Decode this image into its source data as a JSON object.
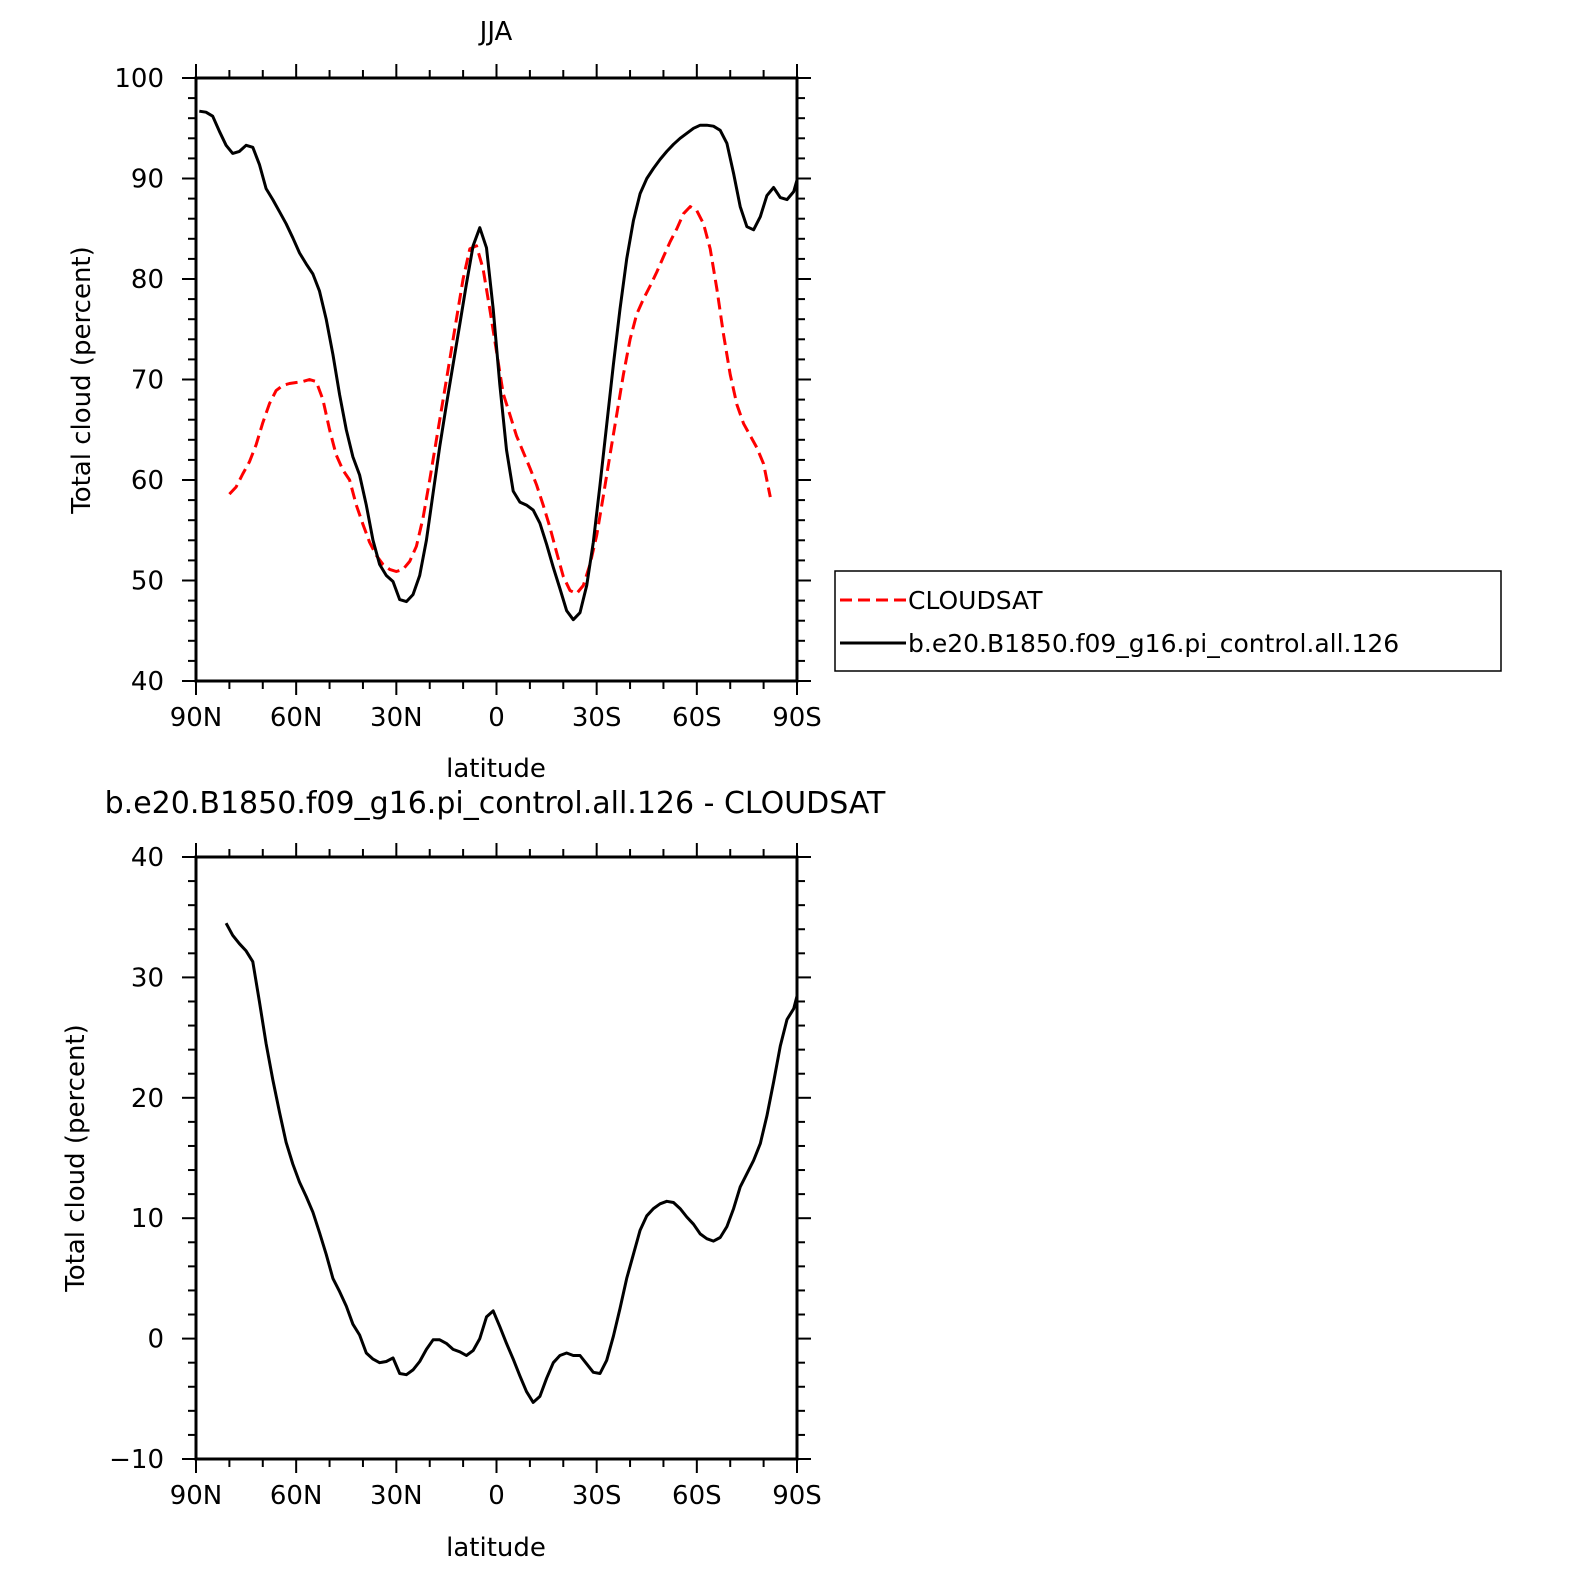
{
  "chart_data": [
    {
      "type": "line",
      "title": "JJA",
      "xlabel": "latitude",
      "ylabel": "Total cloud (percent)",
      "xlim": [
        90,
        -90
      ],
      "ylim": [
        40,
        100
      ],
      "x_ticks": [
        90,
        60,
        30,
        0,
        -30,
        -60,
        -90
      ],
      "x_tick_labels": [
        "90N",
        "60N",
        "30N",
        "0",
        "30S",
        "60S",
        "90S"
      ],
      "y_ticks": [
        40,
        50,
        60,
        70,
        80,
        90,
        100
      ],
      "y_tick_labels": [
        "40",
        "50",
        "60",
        "70",
        "80",
        "90",
        "100"
      ],
      "legend": {
        "placement": "right",
        "entries": [
          "CLOUDSAT",
          "b.e20.B1850.f09_g16.pi_control.all.126"
        ]
      },
      "series": [
        {
          "name": "CLOUDSAT",
          "color": "#ff0000",
          "dash": "dashed",
          "points": [
            [
              80,
              58.6
            ],
            [
              78,
              59.3
            ],
            [
              76,
              60.6
            ],
            [
              74,
              61.8
            ],
            [
              72,
              63.5
            ],
            [
              70,
              65.7
            ],
            [
              68,
              67.6
            ],
            [
              66,
              68.9
            ],
            [
              64,
              69.4
            ],
            [
              62,
              69.6
            ],
            [
              60,
              69.7
            ],
            [
              58,
              69.8
            ],
            [
              56,
              70.0
            ],
            [
              54,
              69.8
            ],
            [
              52,
              68.0
            ],
            [
              50,
              65.0
            ],
            [
              48,
              62.5
            ],
            [
              46,
              61.0
            ],
            [
              44,
              60.0
            ],
            [
              42,
              57.5
            ],
            [
              40,
              55.6
            ],
            [
              38,
              53.8
            ],
            [
              36,
              52.5
            ],
            [
              34,
              51.6
            ],
            [
              32,
              51.1
            ],
            [
              30,
              50.9
            ],
            [
              28,
              51.1
            ],
            [
              26,
              51.9
            ],
            [
              24,
              53.4
            ],
            [
              22,
              56.2
            ],
            [
              20,
              60.0
            ],
            [
              18,
              64.0
            ],
            [
              16,
              68.0
            ],
            [
              14,
              72.0
            ],
            [
              12,
              76.0
            ],
            [
              10,
              80.0
            ],
            [
              8,
              83.0
            ],
            [
              6,
              83.3
            ],
            [
              4,
              81.0
            ],
            [
              2,
              77.0
            ],
            [
              0,
              72.8
            ],
            [
              -2,
              68.6
            ],
            [
              -4,
              66.5
            ],
            [
              -6,
              64.4
            ],
            [
              -8,
              62.8
            ],
            [
              -10,
              61.2
            ],
            [
              -12,
              59.5
            ],
            [
              -14,
              57.5
            ],
            [
              -16,
              55.3
            ],
            [
              -18,
              52.8
            ],
            [
              -20,
              50.4
            ],
            [
              -22,
              49.0
            ],
            [
              -24,
              48.7
            ],
            [
              -26,
              49.5
            ],
            [
              -28,
              51.6
            ],
            [
              -30,
              54.5
            ],
            [
              -32,
              58.4
            ],
            [
              -34,
              62.5
            ],
            [
              -36,
              66.5
            ],
            [
              -38,
              70.5
            ],
            [
              -40,
              74.0
            ],
            [
              -42,
              76.5
            ],
            [
              -44,
              78.0
            ],
            [
              -46,
              79.3
            ],
            [
              -48,
              80.7
            ],
            [
              -50,
              82.2
            ],
            [
              -52,
              83.7
            ],
            [
              -54,
              85.0
            ],
            [
              -56,
              86.5
            ],
            [
              -58,
              87.2
            ],
            [
              -60,
              86.8
            ],
            [
              -62,
              85.5
            ],
            [
              -64,
              83.0
            ],
            [
              -66,
              79.0
            ],
            [
              -68,
              74.5
            ],
            [
              -70,
              70.5
            ],
            [
              -72,
              67.5
            ],
            [
              -74,
              65.6
            ],
            [
              -76,
              64.4
            ],
            [
              -78,
              63.2
            ],
            [
              -80,
              61.6
            ],
            [
              -82,
              58.3
            ]
          ]
        },
        {
          "name": "b.e20.B1850.f09_g16.pi_control.all.126",
          "color": "#000000",
          "dash": "solid",
          "points": [
            [
              89,
              96.7
            ],
            [
              87,
              96.6
            ],
            [
              85,
              96.2
            ],
            [
              83,
              94.7
            ],
            [
              81,
              93.3
            ],
            [
              79,
              92.5
            ],
            [
              77,
              92.7
            ],
            [
              75,
              93.3
            ],
            [
              73,
              93.1
            ],
            [
              71,
              91.4
            ],
            [
              69,
              89.0
            ],
            [
              67,
              87.9
            ],
            [
              65,
              86.7
            ],
            [
              63,
              85.5
            ],
            [
              61,
              84.1
            ],
            [
              59,
              82.6
            ],
            [
              57,
              81.5
            ],
            [
              55,
              80.5
            ],
            [
              53,
              78.8
            ],
            [
              51,
              76.0
            ],
            [
              49,
              72.5
            ],
            [
              47,
              68.5
            ],
            [
              45,
              65.0
            ],
            [
              43,
              62.3
            ],
            [
              41,
              60.5
            ],
            [
              39,
              57.5
            ],
            [
              37,
              54.0
            ],
            [
              35,
              51.6
            ],
            [
              33,
              50.5
            ],
            [
              31,
              49.9
            ],
            [
              29,
              48.1
            ],
            [
              27,
              47.9
            ],
            [
              25,
              48.6
            ],
            [
              23,
              50.5
            ],
            [
              21,
              54.0
            ],
            [
              19,
              58.7
            ],
            [
              17,
              63.3
            ],
            [
              15,
              67.5
            ],
            [
              13,
              71.5
            ],
            [
              11,
              75.5
            ],
            [
              9,
              79.5
            ],
            [
              7,
              83.3
            ],
            [
              5,
              85.1
            ],
            [
              3,
              83.1
            ],
            [
              1,
              77.0
            ],
            [
              -1,
              69.5
            ],
            [
              -3,
              63.0
            ],
            [
              -5,
              58.9
            ],
            [
              -7,
              57.8
            ],
            [
              -9,
              57.5
            ],
            [
              -11,
              57.0
            ],
            [
              -13,
              55.7
            ],
            [
              -15,
              53.6
            ],
            [
              -17,
              51.3
            ],
            [
              -19,
              49.2
            ],
            [
              -21,
              47.0
            ],
            [
              -23,
              46.1
            ],
            [
              -25,
              46.8
            ],
            [
              -27,
              49.5
            ],
            [
              -29,
              53.8
            ],
            [
              -31,
              59.5
            ],
            [
              -33,
              65.5
            ],
            [
              -35,
              71.5
            ],
            [
              -37,
              77.0
            ],
            [
              -39,
              82.0
            ],
            [
              -41,
              85.8
            ],
            [
              -43,
              88.5
            ],
            [
              -45,
              90.0
            ],
            [
              -47,
              91.0
            ],
            [
              -49,
              91.9
            ],
            [
              -51,
              92.7
            ],
            [
              -53,
              93.4
            ],
            [
              -55,
              94.0
            ],
            [
              -57,
              94.5
            ],
            [
              -59,
              95.0
            ],
            [
              -61,
              95.3
            ],
            [
              -63,
              95.3
            ],
            [
              -65,
              95.2
            ],
            [
              -67,
              94.8
            ],
            [
              -69,
              93.5
            ],
            [
              -71,
              90.5
            ],
            [
              -73,
              87.2
            ],
            [
              -75,
              85.2
            ],
            [
              -77,
              84.9
            ],
            [
              -79,
              86.2
            ],
            [
              -81,
              88.3
            ],
            [
              -83,
              89.1
            ],
            [
              -85,
              88.1
            ],
            [
              -87,
              87.9
            ],
            [
              -89,
              88.7
            ],
            [
              -91,
              91.0
            ],
            [
              -93,
              94.5
            ],
            [
              -95,
              96.3
            ]
          ]
        }
      ]
    },
    {
      "type": "line",
      "title": "b.e20.B1850.f09_g16.pi_control.all.126 - CLOUDSAT",
      "xlabel": "latitude",
      "ylabel": "Total cloud (percent)",
      "xlim": [
        90,
        -90
      ],
      "ylim": [
        -10,
        40
      ],
      "x_ticks": [
        90,
        60,
        30,
        0,
        -30,
        -60,
        -90
      ],
      "x_tick_labels": [
        "90N",
        "60N",
        "30N",
        "0",
        "30S",
        "60S",
        "90S"
      ],
      "y_ticks": [
        -10,
        0,
        10,
        20,
        30,
        40
      ],
      "y_tick_labels": [
        "−10",
        "0",
        "10",
        "20",
        "30",
        "40"
      ],
      "series": [
        {
          "color": "#000000",
          "dash": "solid",
          "points": [
            [
              81,
              34.5
            ],
            [
              79,
              33.5
            ],
            [
              77,
              32.8
            ],
            [
              75,
              32.2
            ],
            [
              73,
              31.3
            ],
            [
              71,
              28.0
            ],
            [
              69,
              24.5
            ],
            [
              67,
              21.5
            ],
            [
              65,
              18.8
            ],
            [
              63,
              16.3
            ],
            [
              61,
              14.5
            ],
            [
              59,
              13.0
            ],
            [
              57,
              11.8
            ],
            [
              55,
              10.5
            ],
            [
              53,
              8.8
            ],
            [
              51,
              7.0
            ],
            [
              49,
              5.0
            ],
            [
              47,
              3.9
            ],
            [
              45,
              2.7
            ],
            [
              43,
              1.2
            ],
            [
              41,
              0.3
            ],
            [
              39,
              -1.2
            ],
            [
              37,
              -1.7
            ],
            [
              35,
              -2.0
            ],
            [
              33,
              -1.9
            ],
            [
              31,
              -1.6
            ],
            [
              29,
              -2.9
            ],
            [
              27,
              -3.0
            ],
            [
              25,
              -2.6
            ],
            [
              23,
              -1.9
            ],
            [
              21,
              -0.9
            ],
            [
              19,
              -0.1
            ],
            [
              17,
              -0.1
            ],
            [
              15,
              -0.4
            ],
            [
              13,
              -0.9
            ],
            [
              11,
              -1.1
            ],
            [
              9,
              -1.4
            ],
            [
              7,
              -1.0
            ],
            [
              5,
              0.0
            ],
            [
              3,
              1.8
            ],
            [
              1,
              2.3
            ],
            [
              -1,
              1.0
            ],
            [
              -3,
              -0.4
            ],
            [
              -5,
              -1.7
            ],
            [
              -7,
              -3.1
            ],
            [
              -9,
              -4.4
            ],
            [
              -11,
              -5.3
            ],
            [
              -13,
              -4.8
            ],
            [
              -15,
              -3.3
            ],
            [
              -17,
              -2.0
            ],
            [
              -19,
              -1.4
            ],
            [
              -21,
              -1.2
            ],
            [
              -23,
              -1.4
            ],
            [
              -25,
              -1.4
            ],
            [
              -27,
              -2.1
            ],
            [
              -29,
              -2.8
            ],
            [
              -31,
              -2.9
            ],
            [
              -33,
              -1.8
            ],
            [
              -35,
              0.2
            ],
            [
              -37,
              2.5
            ],
            [
              -39,
              5.0
            ],
            [
              -41,
              7.0
            ],
            [
              -43,
              9.0
            ],
            [
              -45,
              10.2
            ],
            [
              -47,
              10.8
            ],
            [
              -49,
              11.2
            ],
            [
              -51,
              11.4
            ],
            [
              -53,
              11.3
            ],
            [
              -55,
              10.8
            ],
            [
              -57,
              10.1
            ],
            [
              -59,
              9.5
            ],
            [
              -61,
              8.7
            ],
            [
              -63,
              8.3
            ],
            [
              -65,
              8.1
            ],
            [
              -67,
              8.4
            ],
            [
              -69,
              9.3
            ],
            [
              -71,
              10.8
            ],
            [
              -73,
              12.6
            ],
            [
              -75,
              13.7
            ],
            [
              -77,
              14.8
            ],
            [
              -79,
              16.2
            ],
            [
              -81,
              18.5
            ],
            [
              -83,
              21.3
            ],
            [
              -85,
              24.3
            ],
            [
              -87,
              26.5
            ],
            [
              -89,
              27.4
            ],
            [
              -91,
              29.5
            ]
          ]
        }
      ]
    }
  ]
}
